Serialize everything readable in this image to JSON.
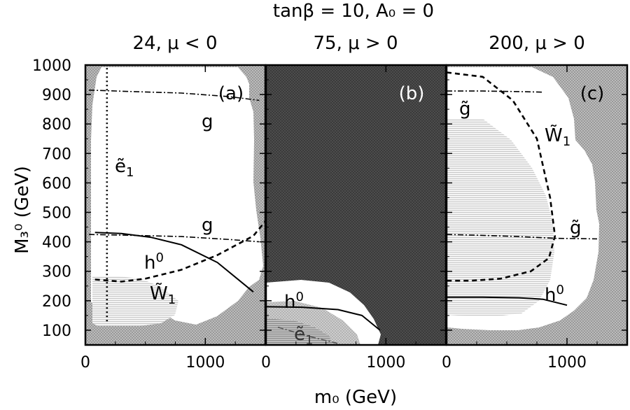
{
  "chart_data": {
    "type": "region",
    "title": "tanβ = 10, A₀ = 0",
    "xlabel": "m₀ (GeV)",
    "ylabel": "M₃⁰ (GeV)",
    "ylim": [
      50,
      1000
    ],
    "yticks": [
      "100",
      "200",
      "300",
      "400",
      "500",
      "600",
      "700",
      "800",
      "900",
      "1000"
    ],
    "yticks_values": [
      100,
      200,
      300,
      400,
      500,
      600,
      700,
      800,
      900,
      1000
    ],
    "panels": [
      {
        "id": "a",
        "tag": "(a)",
        "subtitle": "24, μ < 0",
        "xlim": [
          0,
          1500
        ],
        "xticks": [
          "0",
          "1000"
        ],
        "xticks_values": [
          0,
          1000
        ],
        "curves": [
          {
            "name": "ge1",
            "label": "ẽ",
            "subscript": "1",
            "style": "dotted",
            "x": [
              180,
              180
            ],
            "y": [
              130,
              1000
            ]
          },
          {
            "name": "gluino-upper",
            "label": "g",
            "style": "dashdot",
            "x": [
              30,
              400,
              800,
              1200,
              1450
            ],
            "y": [
              915,
              910,
              905,
              893,
              880
            ]
          },
          {
            "name": "gluino-lower",
            "label": "g",
            "style": "dashdot",
            "x": [
              30,
              400,
              800,
              1200,
              1450
            ],
            "y": [
              425,
              422,
              418,
              408,
              400
            ]
          },
          {
            "name": "higgs",
            "label": "h",
            "superscript": "0",
            "style": "solid",
            "x": [
              80,
              300,
              550,
              800,
              1100,
              1400
            ],
            "y": [
              432,
              428,
              415,
              390,
              330,
              230
            ]
          },
          {
            "name": "wino",
            "label": "W̃",
            "subscript": "1",
            "style": "dashed",
            "x": [
              80,
              300,
              500,
              800,
              1100,
              1400,
              1500
            ],
            "y": [
              272,
              265,
              275,
              305,
              355,
              420,
              470
            ]
          }
        ]
      },
      {
        "id": "b",
        "tag": "(b)",
        "subtitle": "75, μ > 0",
        "xlim": [
          0,
          1500
        ],
        "xticks": [
          "0",
          "1000"
        ],
        "xticks_values": [
          0,
          1000
        ],
        "curves": [
          {
            "name": "higgs",
            "label": "h",
            "superscript": "0",
            "style": "solid",
            "x": [
              0,
              300,
              600,
              800,
              950
            ],
            "y": [
              180,
              178,
              170,
              150,
              100
            ]
          },
          {
            "name": "selectron",
            "label": "ẽ",
            "subscript": "1",
            "style": "dashdot",
            "x": [
              100,
              350,
              600
            ],
            "y": [
              110,
              80,
              55
            ]
          }
        ]
      },
      {
        "id": "c",
        "tag": "(c)",
        "subtitle": "200, μ > 0",
        "xlim": [
          0,
          1500
        ],
        "xticks": [
          "0",
          "1000"
        ],
        "xticks_values": [
          0,
          1000
        ],
        "curves": [
          {
            "name": "gluino-upper",
            "label": "g̃",
            "style": "dashdot",
            "x": [
              0,
              300,
              600,
              800
            ],
            "y": [
              912,
              912,
              910,
              908
            ]
          },
          {
            "name": "wino",
            "label": "W̃",
            "subscript": "1",
            "style": "dashed",
            "x": [
              0,
              300,
              550,
              750,
              860,
              900,
              850,
              700,
              450,
              200,
              0
            ],
            "y": [
              975,
              960,
              880,
              750,
              550,
              420,
              345,
              300,
              275,
              268,
              268
            ]
          },
          {
            "name": "gluino-lower",
            "label": "g̃",
            "style": "dashdot",
            "x": [
              0,
              300,
              600,
              900,
              1250
            ],
            "y": [
              425,
              422,
              418,
              412,
              410
            ]
          },
          {
            "name": "higgs",
            "label": "h",
            "superscript": "0",
            "style": "solid",
            "x": [
              0,
              300,
              600,
              800,
              1000
            ],
            "y": [
              212,
              212,
              210,
              205,
              185
            ]
          }
        ]
      }
    ]
  }
}
